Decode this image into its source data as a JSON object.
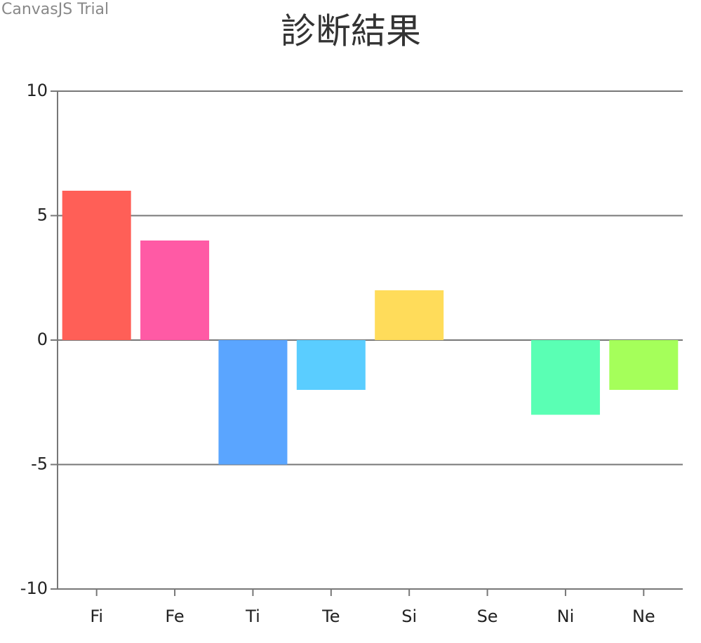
{
  "chart_data": {
    "type": "bar",
    "watermark": "CanvasJS Trial",
    "title": "診断結果",
    "categories": [
      "Fi",
      "Fe",
      "Ti",
      "Te",
      "Si",
      "Se",
      "Ni",
      "Ne"
    ],
    "values": [
      6,
      4,
      -5,
      -2,
      2,
      0,
      -3,
      -2
    ],
    "colors": [
      "#ff5f57",
      "#ff5aa5",
      "#5aa5ff",
      "#5acdff",
      "#ffdc5a",
      "#ff8c5a",
      "#5affb4",
      "#a5ff5a"
    ],
    "ylim": [
      -10,
      10
    ],
    "yticks": [
      -10,
      -5,
      0,
      5,
      10
    ],
    "grid": true
  }
}
